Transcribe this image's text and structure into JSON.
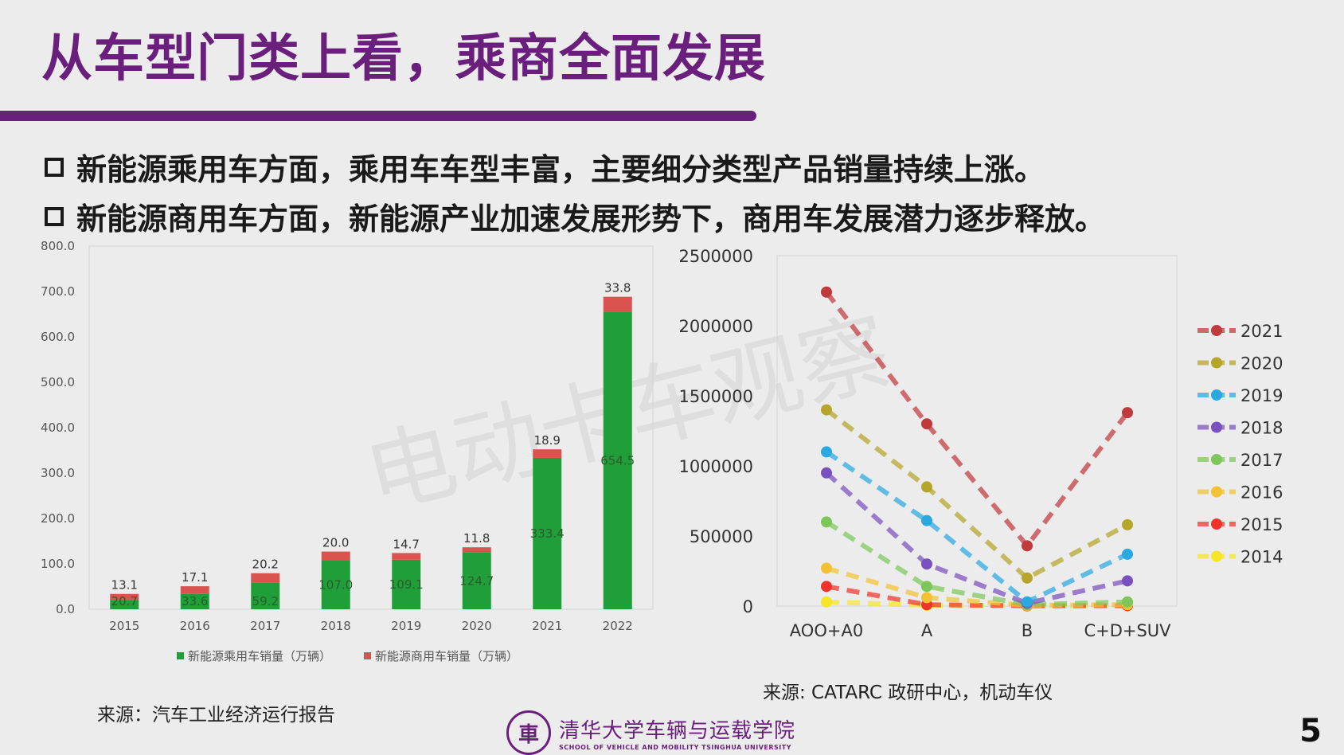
{
  "slide": {
    "title": "从车型门类上看，乘商全面发展",
    "bullets": [
      "新能源乘用车方面，乘用车车型丰富，主要细分类型产品销量持续上涨。",
      "新能源商用车方面，新能源产业加速发展形势下，商用车发展潜力逐步释放。"
    ],
    "source_left": "来源：汽车工业经济运行报告",
    "source_right": "来源: CATARC 政研中心，机动车仪",
    "footer_cn": "清华大学车辆与运载学院",
    "footer_en": "SCHOOL OF VEHICLE AND MOBILITY TSINGHUA UNIVERSITY",
    "page_number": "5",
    "watermark": "电动卡车观察",
    "colors": {
      "title": "#6b1f7c",
      "passenger": "#1f9e3a",
      "commercial": "#d9534f"
    }
  },
  "chart_data": [
    {
      "type": "bar",
      "stacked": true,
      "categories": [
        "2015",
        "2016",
        "2017",
        "2018",
        "2019",
        "2020",
        "2021",
        "2022"
      ],
      "series": [
        {
          "name": "新能源乘用车销量（万辆）",
          "color": "#1f9e3a",
          "values": [
            20.7,
            33.6,
            59.2,
            107.0,
            109.1,
            124.7,
            333.4,
            654.5
          ]
        },
        {
          "name": "新能源商用车销量（万辆）",
          "color": "#d9534f",
          "values": [
            13.1,
            17.1,
            20.2,
            20.0,
            14.7,
            11.8,
            18.9,
            33.8
          ]
        }
      ],
      "yticks": [
        "0.0",
        "100.0",
        "200.0",
        "300.0",
        "400.0",
        "500.0",
        "600.0",
        "700.0",
        "800.0"
      ],
      "ylim": [
        0,
        800
      ],
      "grid": false,
      "legend": "bottom"
    },
    {
      "type": "line",
      "categories": [
        "AOO+A0",
        "A",
        "B",
        "C+D+SUV"
      ],
      "series": [
        {
          "name": "2021",
          "color": "#c0393d",
          "values": [
            2240000,
            1300000,
            430000,
            1380000
          ]
        },
        {
          "name": "2020",
          "color": "#b5a52a",
          "values": [
            1400000,
            850000,
            200000,
            580000
          ]
        },
        {
          "name": "2019",
          "color": "#29a9e0",
          "values": [
            1100000,
            610000,
            30000,
            370000
          ]
        },
        {
          "name": "2018",
          "color": "#7a4fbf",
          "values": [
            950000,
            300000,
            20000,
            180000
          ]
        },
        {
          "name": "2017",
          "color": "#7dc75a",
          "values": [
            600000,
            140000,
            10000,
            30000
          ]
        },
        {
          "name": "2016",
          "color": "#f2c233",
          "values": [
            270000,
            60000,
            5000,
            10000
          ]
        },
        {
          "name": "2015",
          "color": "#f0342b",
          "values": [
            140000,
            10000,
            2000,
            3000
          ]
        },
        {
          "name": "2014",
          "color": "#f7e626",
          "values": [
            30000,
            5000,
            1000,
            1000
          ]
        }
      ],
      "yticks": [
        "0",
        "500000",
        "1000000",
        "1500000",
        "2000000",
        "2500000"
      ],
      "ylim": [
        0,
        2500000
      ],
      "grid": false,
      "legend": "right"
    }
  ]
}
